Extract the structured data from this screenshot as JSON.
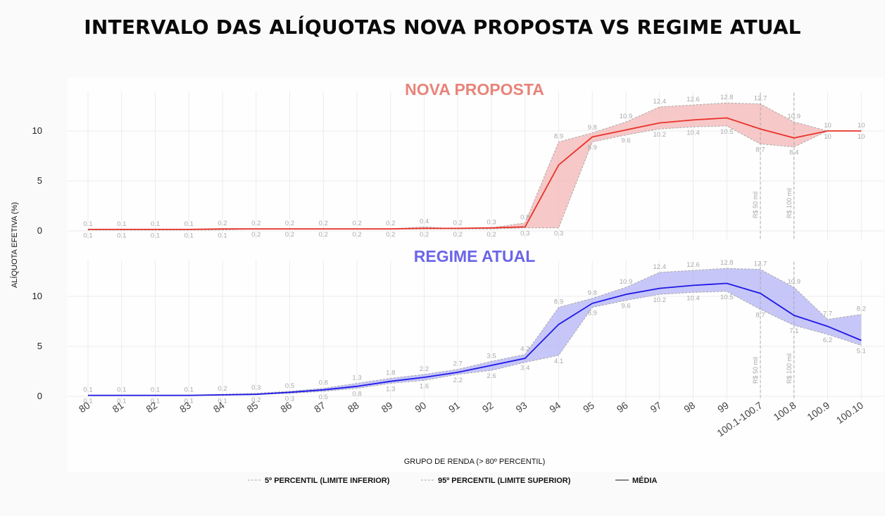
{
  "title": "INTERVALO DAS ALÍQUOTAS NOVA PROPOSTA VS REGIME ATUAL",
  "colors": {
    "nova_line": "#e8332a",
    "nova_band": "#f4b5b5",
    "nova_title": "#e8847a",
    "regime_line": "#1f17e6",
    "regime_band": "#b3b3f5",
    "regime_title": "#6b65e8",
    "percentile_line": "#a9a9a9",
    "grid": "#ececec"
  },
  "chart_data": {
    "type": "area",
    "categories": [
      "80",
      "81",
      "82",
      "83",
      "84",
      "85",
      "86",
      "87",
      "88",
      "89",
      "90",
      "91",
      "92",
      "93",
      "94",
      "95",
      "96",
      "97",
      "98",
      "99",
      "100.1-100.7",
      "100.8",
      "100.9",
      "100.10"
    ],
    "xlabel": "GRUPO DE RENDA (> 80º PERCENTIL)",
    "ylabel": "ALÍQUOTA EFETIVA (%)",
    "yticks": [
      0,
      5,
      10
    ],
    "ylim": [
      0,
      13
    ],
    "grid": true,
    "legend": {
      "position": "bottom",
      "entries": [
        "5º PERCENTIL (LIMITE INFERIOR)",
        "95º PERCENTIL (LIMITE SUPERIOR)",
        "MÉDIA"
      ]
    },
    "reference_lines": [
      {
        "category": "100.1-100.7",
        "label": "R$ 50 mil"
      },
      {
        "category": "100.8",
        "label": "R$ 100 mil"
      }
    ],
    "panels": [
      {
        "title": "NOVA PROPOSTA",
        "series": [
          {
            "name": "5º PERCENTIL (LIMITE INFERIOR)",
            "values": [
              0.1,
              0.1,
              0.1,
              0.1,
              0.1,
              0.2,
              0.2,
              0.2,
              0.2,
              0.2,
              0.2,
              0.2,
              0.2,
              0.3,
              0.3,
              8.9,
              9.6,
              10.2,
              10.4,
              10.5,
              8.7,
              8.4,
              10,
              10
            ]
          },
          {
            "name": "95º PERCENTIL (LIMITE SUPERIOR)",
            "values": [
              0.1,
              0.1,
              0.1,
              0.1,
              0.2,
              0.2,
              0.2,
              0.2,
              0.2,
              0.2,
              0.4,
              0.2,
              0.3,
              0.8,
              8.9,
              9.8,
              10.9,
              12.4,
              12.6,
              12.8,
              12.7,
              10.9,
              10,
              10
            ]
          },
          {
            "name": "MÉDIA",
            "values": [
              0.15,
              0.15,
              0.15,
              0.15,
              0.2,
              0.2,
              0.2,
              0.2,
              0.2,
              0.2,
              0.25,
              0.25,
              0.3,
              0.4,
              6.6,
              9.4,
              10.1,
              10.8,
              11.1,
              11.3,
              10.2,
              9.3,
              10,
              10
            ]
          }
        ],
        "upper_labels": [
          "0.1",
          "0.1",
          "0.1",
          "0.1",
          "0.2",
          "0.2",
          "0.2",
          "0.2",
          "0.2",
          "0.2",
          "0.4",
          "0.2",
          "0.3",
          "0.8",
          "8.9",
          "9.8",
          "10.9",
          "12.4",
          "12.6",
          "12.8",
          "12.7",
          "10.9",
          "10",
          "10"
        ],
        "lower_labels": [
          "0.1",
          "0.1",
          "0.1",
          "0.1",
          "0.1",
          "0.2",
          "0.2",
          "0.2",
          "0.2",
          "0.2",
          "0.2",
          "0.2",
          "0.2",
          "0.3",
          "0.3",
          "8.9",
          "9.6",
          "10.2",
          "10.4",
          "10.5",
          "8.7",
          "8.4",
          "10",
          "10"
        ]
      },
      {
        "title": "REGIME ATUAL",
        "series": [
          {
            "name": "5º PERCENTIL (LIMITE INFERIOR)",
            "values": [
              0.1,
              0.1,
              0.1,
              0.1,
              0.1,
              0.2,
              0.3,
              0.5,
              0.8,
              1.3,
              1.6,
              2.2,
              2.6,
              3.4,
              4.1,
              8.9,
              9.6,
              10.2,
              10.4,
              10.5,
              8.7,
              7.1,
              6.2,
              5.1
            ]
          },
          {
            "name": "95º PERCENTIL (LIMITE SUPERIOR)",
            "values": [
              0.1,
              0.1,
              0.1,
              0.1,
              0.2,
              0.3,
              0.5,
              0.8,
              1.3,
              1.8,
              2.2,
              2.7,
              3.5,
              4.2,
              8.9,
              9.8,
              10.9,
              12.4,
              12.6,
              12.8,
              12.7,
              10.9,
              7.7,
              8.2
            ]
          },
          {
            "name": "MÉDIA",
            "values": [
              0.1,
              0.1,
              0.1,
              0.1,
              0.15,
              0.2,
              0.4,
              0.65,
              1.0,
              1.5,
              1.9,
              2.4,
              3.1,
              3.8,
              7.2,
              9.3,
              10.2,
              10.8,
              11.1,
              11.3,
              10.3,
              8.1,
              7.0,
              5.6
            ]
          }
        ],
        "upper_labels": [
          "0.1",
          "0.1",
          "0.1",
          "0.1",
          "0.2",
          "0.3",
          "0.5",
          "0.8",
          "1.3",
          "1.8",
          "2.2",
          "2.7",
          "3.5",
          "4.2",
          "8.9",
          "9.8",
          "10.9",
          "12.4",
          "12.6",
          "12.8",
          "12.7",
          "10.9",
          "7.7",
          "8.2"
        ],
        "lower_labels": [
          "0.1",
          "0.1",
          "0.1",
          "0.1",
          "0.1",
          "0.2",
          "0.3",
          "0.5",
          "0.8",
          "1.3",
          "1.6",
          "2.2",
          "2.6",
          "3.4",
          "4.1",
          "8.9",
          "9.6",
          "10.2",
          "10.4",
          "10.5",
          "8.7",
          "7.1",
          "6.2",
          "5.1"
        ]
      }
    ]
  }
}
